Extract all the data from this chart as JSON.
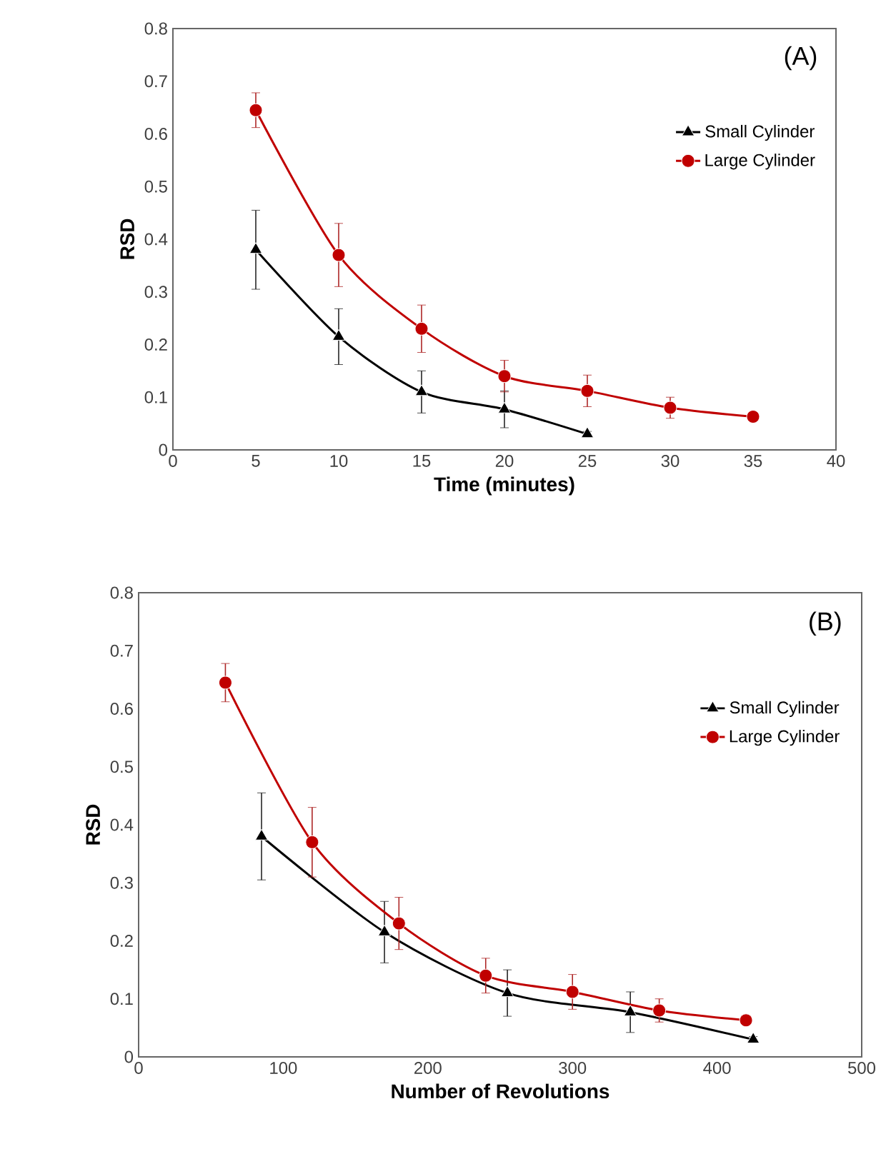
{
  "chart_data": [
    {
      "type": "line",
      "xlabel": "Time (minutes)",
      "ylabel": "RSD",
      "annotations": [
        "(A)"
      ],
      "xlim": [
        0,
        40
      ],
      "xticks": [
        0,
        5,
        10,
        15,
        20,
        25,
        30,
        35,
        40
      ],
      "ylim": [
        0,
        0.8
      ],
      "yticks": [
        0,
        0.1,
        0.2,
        0.3,
        0.4,
        0.5,
        0.6,
        0.7,
        0.8
      ],
      "grid": false,
      "legend": "right",
      "line_style": "solid",
      "series": [
        {
          "name": "Small Cylinder",
          "color": "#000000",
          "marker": "triangle",
          "x": [
            5,
            10,
            15,
            20,
            25
          ],
          "values": [
            0.38,
            0.215,
            0.11,
            0.077,
            0.03
          ],
          "errors": [
            0.075,
            0.053,
            0.04,
            0.035,
            0.005
          ]
        },
        {
          "name": "Large Cylinder",
          "color": "#c00000",
          "marker": "circle",
          "x": [
            5,
            10,
            15,
            20,
            25,
            30,
            35
          ],
          "values": [
            0.645,
            0.37,
            0.23,
            0.14,
            0.112,
            0.08,
            0.063
          ],
          "errors": [
            0.033,
            0.06,
            0.045,
            0.03,
            0.03,
            0.02,
            null
          ]
        }
      ]
    },
    {
      "type": "line",
      "xlabel": "Number of Revolutions",
      "ylabel": "RSD",
      "annotations": [
        "(B)"
      ],
      "xlim": [
        0,
        500
      ],
      "xticks": [
        0,
        100,
        200,
        300,
        400,
        500
      ],
      "ylim": [
        0,
        0.8
      ],
      "yticks": [
        0,
        0.1,
        0.2,
        0.3,
        0.4,
        0.5,
        0.6,
        0.7,
        0.8
      ],
      "grid": false,
      "legend": "right",
      "line_style": "solid",
      "series": [
        {
          "name": "Small Cylinder",
          "color": "#000000",
          "marker": "triangle",
          "x": [
            85,
            170,
            255,
            340,
            425
          ],
          "values": [
            0.38,
            0.215,
            0.11,
            0.077,
            0.03
          ],
          "errors": [
            0.075,
            0.053,
            0.04,
            0.035,
            0.005
          ]
        },
        {
          "name": "Large Cylinder",
          "color": "#c00000",
          "marker": "circle",
          "x": [
            60,
            120,
            180,
            240,
            300,
            360,
            420
          ],
          "values": [
            0.645,
            0.37,
            0.23,
            0.14,
            0.112,
            0.08,
            0.063
          ],
          "errors": [
            0.033,
            0.06,
            0.045,
            0.03,
            0.03,
            0.02,
            null
          ]
        }
      ]
    }
  ]
}
